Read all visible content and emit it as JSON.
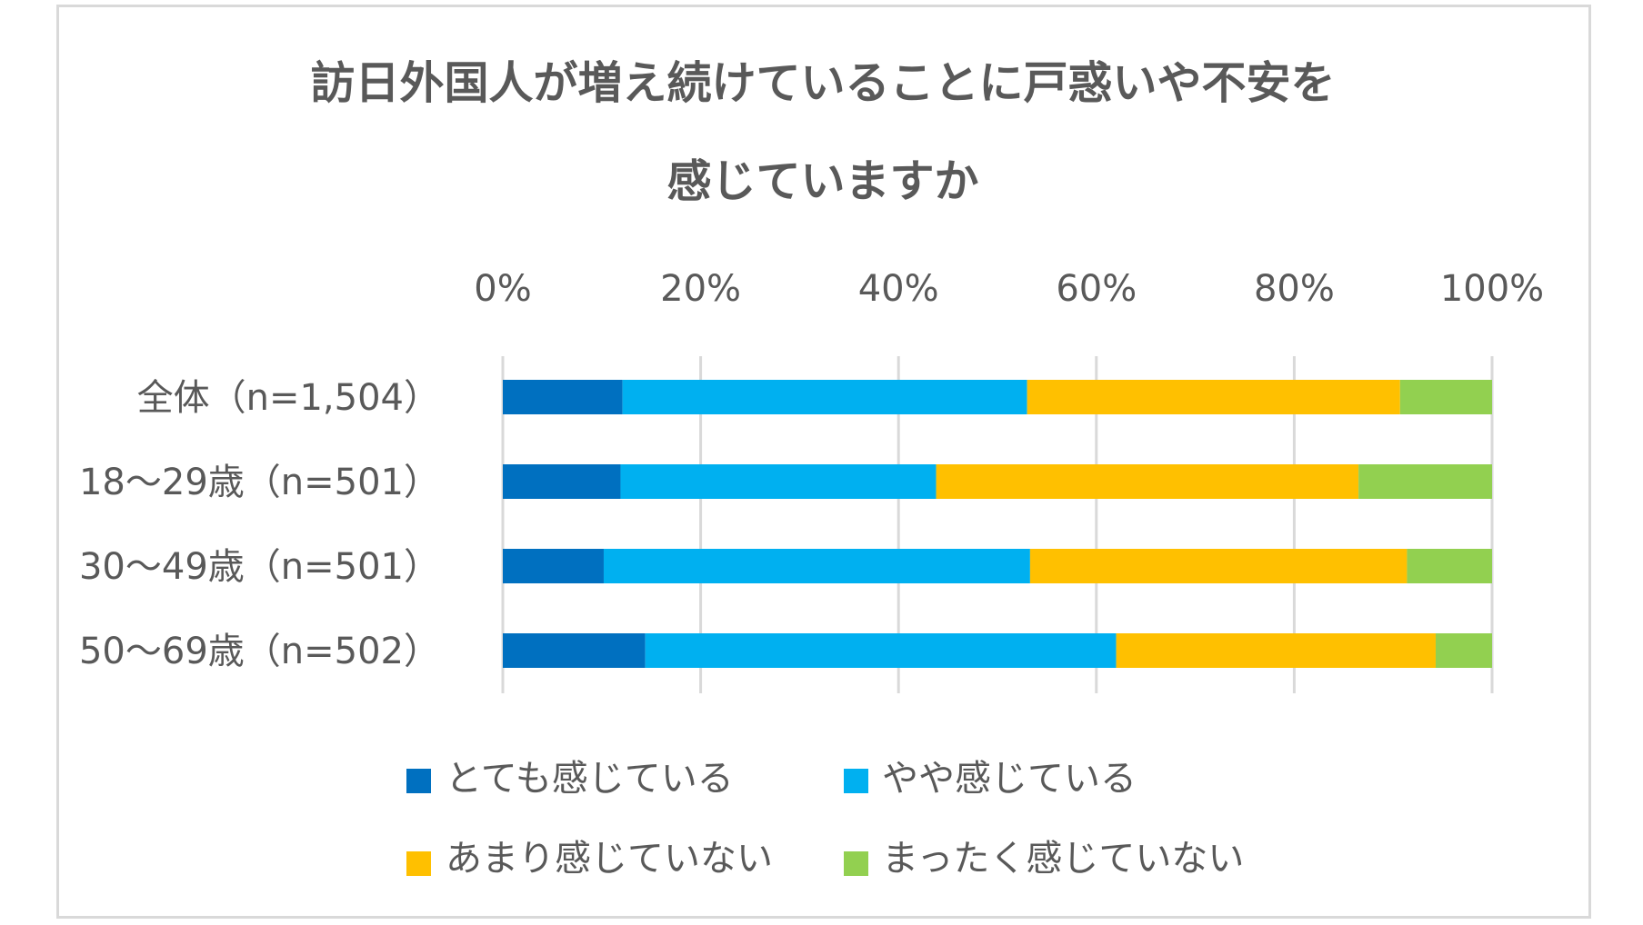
{
  "chart_data": {
    "type": "bar",
    "orientation": "horizontal",
    "stacked": "percent",
    "title_lines": [
      "訪日外国人が増え続けていることに戸惑いや不安を",
      "感じていますか"
    ],
    "xlim": [
      0,
      100
    ],
    "x_ticks": [
      "0%",
      "20%",
      "40%",
      "60%",
      "80%",
      "100%"
    ],
    "axis_position": "top",
    "grid": true,
    "legend_position": "bottom",
    "categories": [
      "全体（n=1,504）",
      "18～29歳（n=501）",
      "30～49歳（n=501）",
      "50～69歳（n=502）"
    ],
    "series": [
      {
        "name": "とても感じている",
        "color": "#0070c0",
        "values": [
          12.1,
          11.9,
          10.2,
          14.4
        ]
      },
      {
        "name": "やや感じている",
        "color": "#00b0f0",
        "values": [
          40.9,
          31.9,
          43.1,
          47.6
        ]
      },
      {
        "name": "あまり感じていない",
        "color": "#ffc000",
        "values": [
          37.7,
          42.7,
          38.1,
          32.3
        ]
      },
      {
        "name": "まったく感じていない",
        "color": "#92d050",
        "values": [
          9.3,
          13.5,
          8.6,
          5.7
        ]
      }
    ]
  }
}
